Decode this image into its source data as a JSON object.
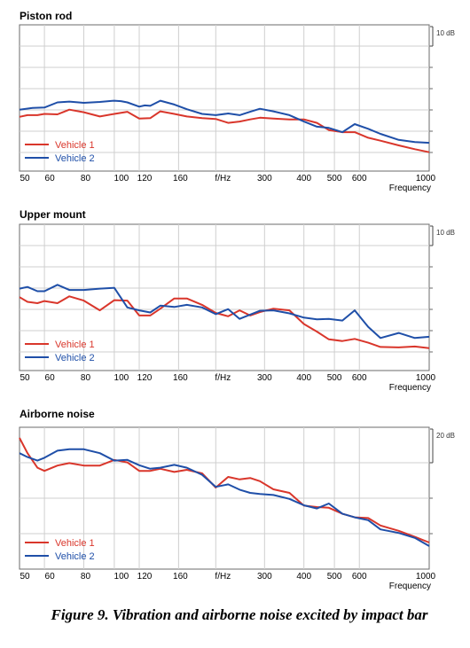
{
  "chart_data": [
    {
      "type": "line",
      "title": "Piston rod",
      "scale_label": "10 dB",
      "xlabel": "Frequency",
      "x_scale": "log",
      "xlim": [
        50,
        1000
      ],
      "x_tick_labels": [
        "50",
        "60",
        "80",
        "100",
        "120",
        "160",
        "f/Hz",
        "300",
        "400",
        "500",
        "600",
        "1000"
      ],
      "legend_placement": "bottom-left",
      "grid": true,
      "series": [
        {
          "name": "Vehicle 1",
          "color": "#d9362b",
          "x": [
            50,
            53,
            57,
            60,
            66,
            72,
            80,
            90,
            100,
            110,
            120,
            130,
            140,
            155,
            170,
            190,
            210,
            230,
            250,
            270,
            290,
            320,
            360,
            400,
            440,
            480,
            530,
            580,
            640,
            700,
            800,
            900,
            1000
          ],
          "y": [
            9.2,
            9.6,
            9.6,
            9.9,
            9.8,
            10.9,
            10.3,
            9.3,
            9.9,
            10.4,
            8.8,
            8.9,
            10.5,
            9.9,
            9.3,
            8.9,
            8.7,
            7.8,
            8.1,
            8.6,
            9.0,
            8.8,
            8.6,
            8.6,
            7.8,
            6.1,
            5.6,
            5.6,
            4.3,
            3.6,
            2.5,
            1.6,
            0.9
          ]
        },
        {
          "name": "Vehicle 2",
          "color": "#1f4fa8",
          "x": [
            50,
            55,
            60,
            66,
            72,
            80,
            90,
            100,
            105,
            110,
            120,
            125,
            130,
            140,
            155,
            170,
            190,
            210,
            230,
            250,
            270,
            290,
            320,
            360,
            400,
            440,
            480,
            530,
            580,
            640,
            700,
            800,
            900,
            1000
          ],
          "y": [
            10.9,
            11.3,
            11.4,
            12.6,
            12.8,
            12.5,
            12.7,
            13.0,
            12.9,
            12.6,
            11.6,
            11.9,
            11.8,
            13.0,
            12.1,
            11.0,
            9.9,
            9.6,
            10.0,
            9.6,
            10.4,
            11.1,
            10.5,
            9.6,
            8.1,
            6.9,
            6.6,
            5.6,
            7.5,
            6.4,
            5.2,
            3.8,
            3.3,
            3.1
          ]
        }
      ]
    },
    {
      "type": "line",
      "title": "Upper mount",
      "scale_label": "10 dB",
      "xlabel": "Frequency",
      "x_scale": "log",
      "xlim": [
        50,
        1000
      ],
      "x_tick_labels": [
        "50",
        "60",
        "80",
        "100",
        "120",
        "160",
        "f/Hz",
        "300",
        "400",
        "500",
        "600",
        "1000"
      ],
      "legend_placement": "bottom-left",
      "grid": true,
      "series": [
        {
          "name": "Vehicle 1",
          "color": "#d9362b",
          "x": [
            50,
            53,
            57,
            60,
            66,
            72,
            80,
            90,
            100,
            110,
            120,
            130,
            140,
            155,
            170,
            190,
            210,
            230,
            250,
            270,
            290,
            320,
            360,
            400,
            440,
            480,
            530,
            580,
            640,
            700,
            800,
            900,
            1000
          ],
          "y": [
            13.7,
            12.6,
            12.3,
            12.8,
            12.3,
            13.9,
            12.9,
            10.6,
            13.0,
            12.9,
            9.4,
            9.4,
            11.0,
            13.4,
            13.4,
            11.9,
            10.0,
            9.2,
            10.6,
            9.4,
            10.2,
            11.0,
            10.6,
            7.4,
            5.6,
            3.8,
            3.4,
            3.9,
            3.0,
            2.0,
            1.9,
            2.1,
            1.7
          ]
        },
        {
          "name": "Vehicle 2",
          "color": "#1f4fa8",
          "x": [
            50,
            53,
            57,
            60,
            66,
            72,
            80,
            90,
            100,
            110,
            120,
            130,
            140,
            155,
            170,
            190,
            210,
            230,
            250,
            270,
            290,
            320,
            360,
            400,
            440,
            480,
            530,
            580,
            640,
            700,
            800,
            900,
            1000
          ],
          "y": [
            15.7,
            16.1,
            15.1,
            15.1,
            16.6,
            15.4,
            15.4,
            15.7,
            15.9,
            11.3,
            10.6,
            10.1,
            11.7,
            11.4,
            11.9,
            11.3,
            9.7,
            10.9,
            8.6,
            9.6,
            10.5,
            10.6,
            9.9,
            8.9,
            8.5,
            8.6,
            8.2,
            10.6,
            6.7,
            4.1,
            5.3,
            4.1,
            4.4
          ]
        }
      ]
    },
    {
      "type": "line",
      "title": "Airborne noise",
      "scale_label": "20 dB",
      "xlabel": "Frequency",
      "x_scale": "log",
      "xlim": [
        50,
        1000
      ],
      "x_tick_labels": [
        "50",
        "60",
        "80",
        "100",
        "120",
        "160",
        "f/Hz",
        "300",
        "400",
        "500",
        "600",
        "1000"
      ],
      "legend_placement": "bottom-left",
      "grid": true,
      "series": [
        {
          "name": "Vehicle 1",
          "color": "#d9362b",
          "x": [
            50,
            53,
            57,
            60,
            66,
            72,
            80,
            90,
            100,
            110,
            120,
            130,
            140,
            155,
            170,
            190,
            210,
            230,
            250,
            270,
            290,
            320,
            360,
            400,
            440,
            480,
            530,
            580,
            640,
            700,
            800,
            900,
            1000
          ],
          "y": [
            22.0,
            17.7,
            13.6,
            12.7,
            14.2,
            14.9,
            14.2,
            14.2,
            15.8,
            15.1,
            12.7,
            12.7,
            13.3,
            12.4,
            13.0,
            12.0,
            8.0,
            11.0,
            10.3,
            10.7,
            9.8,
            7.5,
            6.5,
            2.9,
            2.5,
            2.3,
            0.6,
            -0.4,
            -0.6,
            -2.7,
            -4.2,
            -5.9,
            -7.5
          ]
        },
        {
          "name": "Vehicle 2",
          "color": "#1f4fa8",
          "x": [
            50,
            53,
            57,
            60,
            66,
            72,
            80,
            90,
            100,
            110,
            120,
            130,
            140,
            155,
            170,
            190,
            210,
            230,
            250,
            270,
            290,
            320,
            360,
            400,
            440,
            480,
            530,
            580,
            640,
            700,
            800,
            900,
            1000
          ],
          "y": [
            17.7,
            16.6,
            15.6,
            16.4,
            18.4,
            18.8,
            18.8,
            17.7,
            15.6,
            15.8,
            14.3,
            13.3,
            13.6,
            14.4,
            13.6,
            11.6,
            8.2,
            8.9,
            7.4,
            6.5,
            6.2,
            5.9,
            4.8,
            3.0,
            2.1,
            3.5,
            0.6,
            -0.4,
            -1.2,
            -3.8,
            -4.8,
            -6.2,
            -8.5
          ]
        }
      ]
    }
  ],
  "caption": "Figure 9. Vibration and airborne noise excited by impact bar"
}
